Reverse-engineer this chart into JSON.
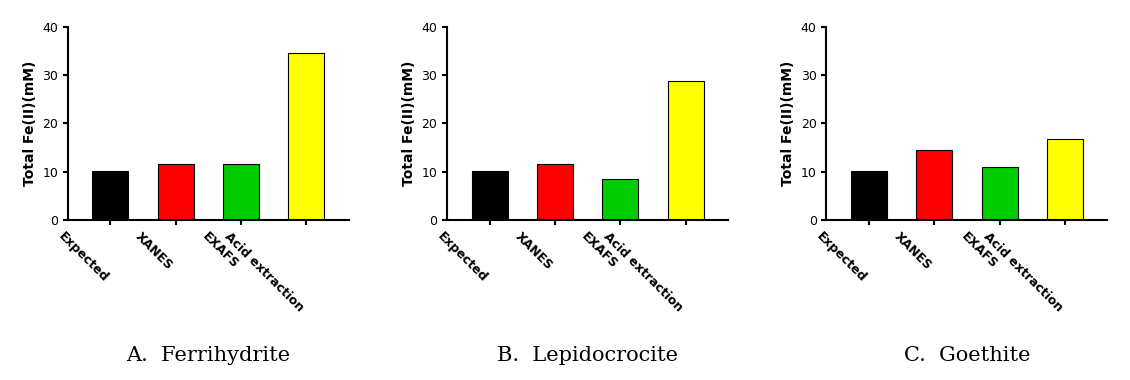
{
  "panels": [
    {
      "title": "A.  Ferrihydrite",
      "ylabel": "Total Fe(II)(mM)",
      "ylim": [
        0,
        40
      ],
      "yticks": [
        0,
        10,
        20,
        30,
        40
      ],
      "categories": [
        "Expected",
        "XANES",
        "EXAFS",
        "Acid extraction"
      ],
      "values": [
        10.1,
        11.7,
        11.6,
        34.5
      ],
      "colors": [
        "#000000",
        "#ff0000",
        "#00cc00",
        "#ffff00"
      ]
    },
    {
      "title": "B.  Lepidocrocite",
      "ylabel": "Total Fe(II)(mM)",
      "ylim": [
        0,
        40
      ],
      "yticks": [
        0,
        10,
        20,
        30,
        40
      ],
      "categories": [
        "Expected",
        "XANES",
        "EXAFS",
        "Acid extraction"
      ],
      "values": [
        10.1,
        11.6,
        8.5,
        28.8
      ],
      "colors": [
        "#000000",
        "#ff0000",
        "#00cc00",
        "#ffff00"
      ]
    },
    {
      "title": "C.  Goethite",
      "ylabel": "Total Fe(II)(mM)",
      "ylim": [
        0,
        40
      ],
      "yticks": [
        0,
        10,
        20,
        30,
        40
      ],
      "categories": [
        "Expected",
        "XANES",
        "EXAFS",
        "Acid extraction"
      ],
      "values": [
        10.2,
        14.6,
        11.1,
        16.7
      ],
      "colors": [
        "#000000",
        "#ff0000",
        "#00cc00",
        "#ffff00"
      ]
    }
  ],
  "ylabel_fontsize": 10,
  "ytick_fontsize": 9,
  "xtick_fontsize": 9,
  "bar_width": 0.55,
  "xtick_rotation": -45,
  "fig_bg": "#ffffff",
  "axes_bg": "#ffffff",
  "panel_title_fontsize": 15,
  "spine_linewidth": 1.5
}
